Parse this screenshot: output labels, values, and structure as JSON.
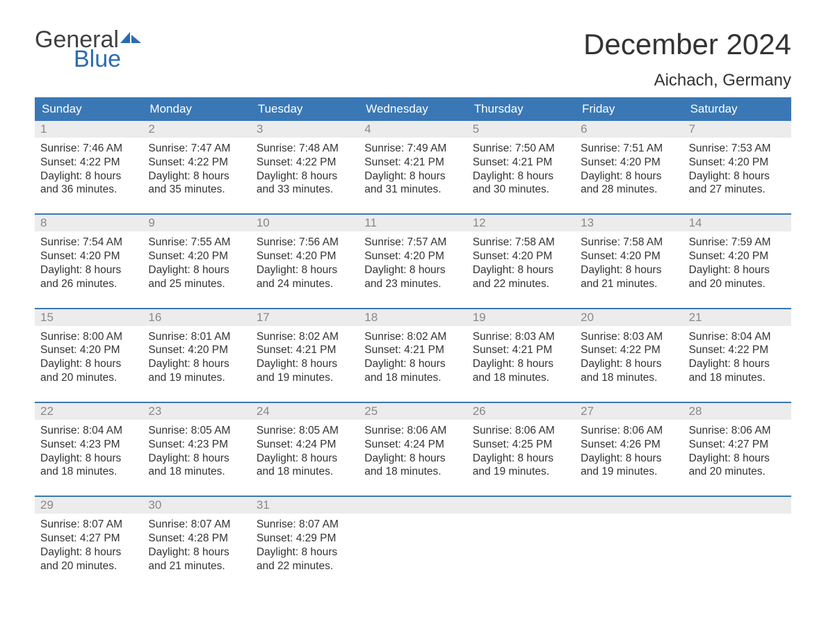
{
  "brand": {
    "general": "General",
    "blue": "Blue"
  },
  "title": "December 2024",
  "location": "Aichach, Germany",
  "colors": {
    "header_bg": "#3a78b5",
    "header_text": "#ffffff",
    "daynum_bg": "#ececec",
    "daynum_text": "#888888",
    "body_text": "#333333",
    "rule": "#3a78b5",
    "logo_blue": "#2b6cb0",
    "logo_gray": "#404040"
  },
  "day_labels": [
    "Sunday",
    "Monday",
    "Tuesday",
    "Wednesday",
    "Thursday",
    "Friday",
    "Saturday"
  ],
  "weeks": [
    [
      {
        "n": "1",
        "sunrise": "7:46 AM",
        "sunset": "4:22 PM",
        "dl1": "Daylight: 8 hours",
        "dl2": "and 36 minutes."
      },
      {
        "n": "2",
        "sunrise": "7:47 AM",
        "sunset": "4:22 PM",
        "dl1": "Daylight: 8 hours",
        "dl2": "and 35 minutes."
      },
      {
        "n": "3",
        "sunrise": "7:48 AM",
        "sunset": "4:22 PM",
        "dl1": "Daylight: 8 hours",
        "dl2": "and 33 minutes."
      },
      {
        "n": "4",
        "sunrise": "7:49 AM",
        "sunset": "4:21 PM",
        "dl1": "Daylight: 8 hours",
        "dl2": "and 31 minutes."
      },
      {
        "n": "5",
        "sunrise": "7:50 AM",
        "sunset": "4:21 PM",
        "dl1": "Daylight: 8 hours",
        "dl2": "and 30 minutes."
      },
      {
        "n": "6",
        "sunrise": "7:51 AM",
        "sunset": "4:20 PM",
        "dl1": "Daylight: 8 hours",
        "dl2": "and 28 minutes."
      },
      {
        "n": "7",
        "sunrise": "7:53 AM",
        "sunset": "4:20 PM",
        "dl1": "Daylight: 8 hours",
        "dl2": "and 27 minutes."
      }
    ],
    [
      {
        "n": "8",
        "sunrise": "7:54 AM",
        "sunset": "4:20 PM",
        "dl1": "Daylight: 8 hours",
        "dl2": "and 26 minutes."
      },
      {
        "n": "9",
        "sunrise": "7:55 AM",
        "sunset": "4:20 PM",
        "dl1": "Daylight: 8 hours",
        "dl2": "and 25 minutes."
      },
      {
        "n": "10",
        "sunrise": "7:56 AM",
        "sunset": "4:20 PM",
        "dl1": "Daylight: 8 hours",
        "dl2": "and 24 minutes."
      },
      {
        "n": "11",
        "sunrise": "7:57 AM",
        "sunset": "4:20 PM",
        "dl1": "Daylight: 8 hours",
        "dl2": "and 23 minutes."
      },
      {
        "n": "12",
        "sunrise": "7:58 AM",
        "sunset": "4:20 PM",
        "dl1": "Daylight: 8 hours",
        "dl2": "and 22 minutes."
      },
      {
        "n": "13",
        "sunrise": "7:58 AM",
        "sunset": "4:20 PM",
        "dl1": "Daylight: 8 hours",
        "dl2": "and 21 minutes."
      },
      {
        "n": "14",
        "sunrise": "7:59 AM",
        "sunset": "4:20 PM",
        "dl1": "Daylight: 8 hours",
        "dl2": "and 20 minutes."
      }
    ],
    [
      {
        "n": "15",
        "sunrise": "8:00 AM",
        "sunset": "4:20 PM",
        "dl1": "Daylight: 8 hours",
        "dl2": "and 20 minutes."
      },
      {
        "n": "16",
        "sunrise": "8:01 AM",
        "sunset": "4:20 PM",
        "dl1": "Daylight: 8 hours",
        "dl2": "and 19 minutes."
      },
      {
        "n": "17",
        "sunrise": "8:02 AM",
        "sunset": "4:21 PM",
        "dl1": "Daylight: 8 hours",
        "dl2": "and 19 minutes."
      },
      {
        "n": "18",
        "sunrise": "8:02 AM",
        "sunset": "4:21 PM",
        "dl1": "Daylight: 8 hours",
        "dl2": "and 18 minutes."
      },
      {
        "n": "19",
        "sunrise": "8:03 AM",
        "sunset": "4:21 PM",
        "dl1": "Daylight: 8 hours",
        "dl2": "and 18 minutes."
      },
      {
        "n": "20",
        "sunrise": "8:03 AM",
        "sunset": "4:22 PM",
        "dl1": "Daylight: 8 hours",
        "dl2": "and 18 minutes."
      },
      {
        "n": "21",
        "sunrise": "8:04 AM",
        "sunset": "4:22 PM",
        "dl1": "Daylight: 8 hours",
        "dl2": "and 18 minutes."
      }
    ],
    [
      {
        "n": "22",
        "sunrise": "8:04 AM",
        "sunset": "4:23 PM",
        "dl1": "Daylight: 8 hours",
        "dl2": "and 18 minutes."
      },
      {
        "n": "23",
        "sunrise": "8:05 AM",
        "sunset": "4:23 PM",
        "dl1": "Daylight: 8 hours",
        "dl2": "and 18 minutes."
      },
      {
        "n": "24",
        "sunrise": "8:05 AM",
        "sunset": "4:24 PM",
        "dl1": "Daylight: 8 hours",
        "dl2": "and 18 minutes."
      },
      {
        "n": "25",
        "sunrise": "8:06 AM",
        "sunset": "4:24 PM",
        "dl1": "Daylight: 8 hours",
        "dl2": "and 18 minutes."
      },
      {
        "n": "26",
        "sunrise": "8:06 AM",
        "sunset": "4:25 PM",
        "dl1": "Daylight: 8 hours",
        "dl2": "and 19 minutes."
      },
      {
        "n": "27",
        "sunrise": "8:06 AM",
        "sunset": "4:26 PM",
        "dl1": "Daylight: 8 hours",
        "dl2": "and 19 minutes."
      },
      {
        "n": "28",
        "sunrise": "8:06 AM",
        "sunset": "4:27 PM",
        "dl1": "Daylight: 8 hours",
        "dl2": "and 20 minutes."
      }
    ],
    [
      {
        "n": "29",
        "sunrise": "8:07 AM",
        "sunset": "4:27 PM",
        "dl1": "Daylight: 8 hours",
        "dl2": "and 20 minutes."
      },
      {
        "n": "30",
        "sunrise": "8:07 AM",
        "sunset": "4:28 PM",
        "dl1": "Daylight: 8 hours",
        "dl2": "and 21 minutes."
      },
      {
        "n": "31",
        "sunrise": "8:07 AM",
        "sunset": "4:29 PM",
        "dl1": "Daylight: 8 hours",
        "dl2": "and 22 minutes."
      },
      null,
      null,
      null,
      null
    ]
  ],
  "label_prefix": {
    "sunrise": "Sunrise: ",
    "sunset": "Sunset: "
  }
}
